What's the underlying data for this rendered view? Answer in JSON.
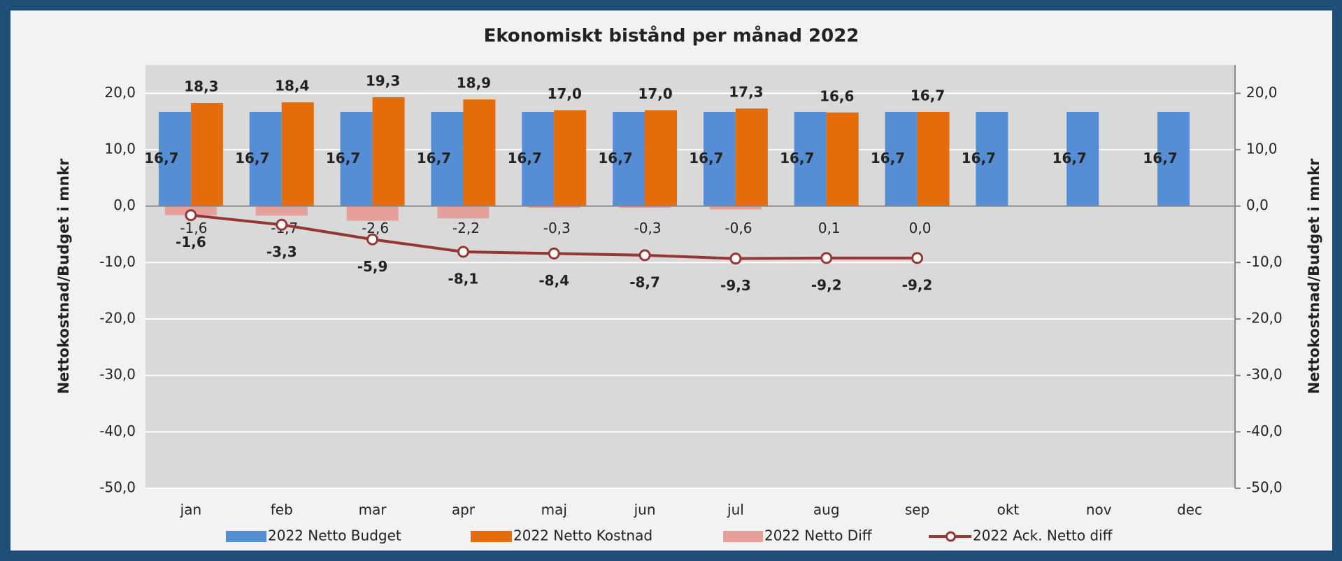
{
  "chart_data": {
    "type": "bar",
    "title": "Ekonomiskt bistånd per månad 2022",
    "ylabel": "Nettokostnad/Budget i mnkr",
    "y2label": "Nettokostnad/Budget i mnkr",
    "categories": [
      "jan",
      "feb",
      "mar",
      "apr",
      "maj",
      "jun",
      "jul",
      "aug",
      "sep",
      "okt",
      "nov",
      "dec"
    ],
    "ylim": [
      -50,
      25
    ],
    "yticks": [
      {
        "value": -50,
        "label": "-50,0"
      },
      {
        "value": -40,
        "label": "-40,0"
      },
      {
        "value": -30,
        "label": "-30,0"
      },
      {
        "value": -20,
        "label": "-20,0"
      },
      {
        "value": -10,
        "label": "-10,0"
      },
      {
        "value": 0,
        "label": "0,0"
      },
      {
        "value": 10,
        "label": "10,0"
      },
      {
        "value": 20,
        "label": "20,0"
      }
    ],
    "y2lim": [
      -50,
      25
    ],
    "y2ticks": [
      {
        "value": -50,
        "label": "-50,0"
      },
      {
        "value": -40,
        "label": "-40,0"
      },
      {
        "value": -30,
        "label": "-30,0"
      },
      {
        "value": -20,
        "label": "-20,0"
      },
      {
        "value": -10,
        "label": "-10,0"
      },
      {
        "value": 0,
        "label": "0,0"
      },
      {
        "value": 10,
        "label": "10,0"
      },
      {
        "value": 20,
        "label": "20,0"
      }
    ],
    "grid": true,
    "legend": "bottom",
    "series": [
      {
        "name": "2022 Netto Budget",
        "type": "bar",
        "color": "#558ed5",
        "values": [
          16.7,
          16.7,
          16.7,
          16.7,
          16.7,
          16.7,
          16.7,
          16.7,
          16.7,
          16.7,
          16.7,
          16.7
        ],
        "value_labels": [
          "16,7",
          "16,7",
          "16,7",
          "16,7",
          "16,7",
          "16,7",
          "16,7",
          "16,7",
          "16,7",
          "16,7",
          "16,7",
          "16,7"
        ]
      },
      {
        "name": "2022 Netto Kostnad",
        "type": "bar",
        "color": "#e46c0a",
        "values": [
          18.3,
          18.4,
          19.3,
          18.9,
          17.0,
          17.0,
          17.3,
          16.6,
          16.7,
          null,
          null,
          null
        ],
        "value_labels": [
          "18,3",
          "18,4",
          "19,3",
          "18,9",
          "17,0",
          "17,0",
          "17,3",
          "16,6",
          "16,7",
          null,
          null,
          null
        ]
      },
      {
        "name": "2022 Netto Diff",
        "type": "bar",
        "color": "#e6a09c",
        "values": [
          -1.6,
          -1.7,
          -2.6,
          -2.2,
          -0.3,
          -0.3,
          -0.6,
          0.1,
          0.0,
          null,
          null,
          null
        ],
        "value_labels": [
          "-1,6",
          "-1,7",
          "-2,6",
          "-2,2",
          "-0,3",
          "-0,3",
          "-0,6",
          "0,1",
          "0,0",
          null,
          null,
          null
        ]
      },
      {
        "name": "2022 Ack. Netto diff",
        "type": "line",
        "axis": "y2",
        "color": "#953735",
        "values": [
          -1.6,
          -3.3,
          -5.9,
          -8.1,
          -8.4,
          -8.7,
          -9.3,
          -9.2,
          -9.2,
          null,
          null,
          null
        ],
        "value_labels": [
          "-1,6",
          "-3,3",
          "-5,9",
          "-8,1",
          "-8,4",
          "-8,7",
          "-9,3",
          "-9,2",
          "-9,2",
          null,
          null,
          null
        ]
      }
    ]
  }
}
